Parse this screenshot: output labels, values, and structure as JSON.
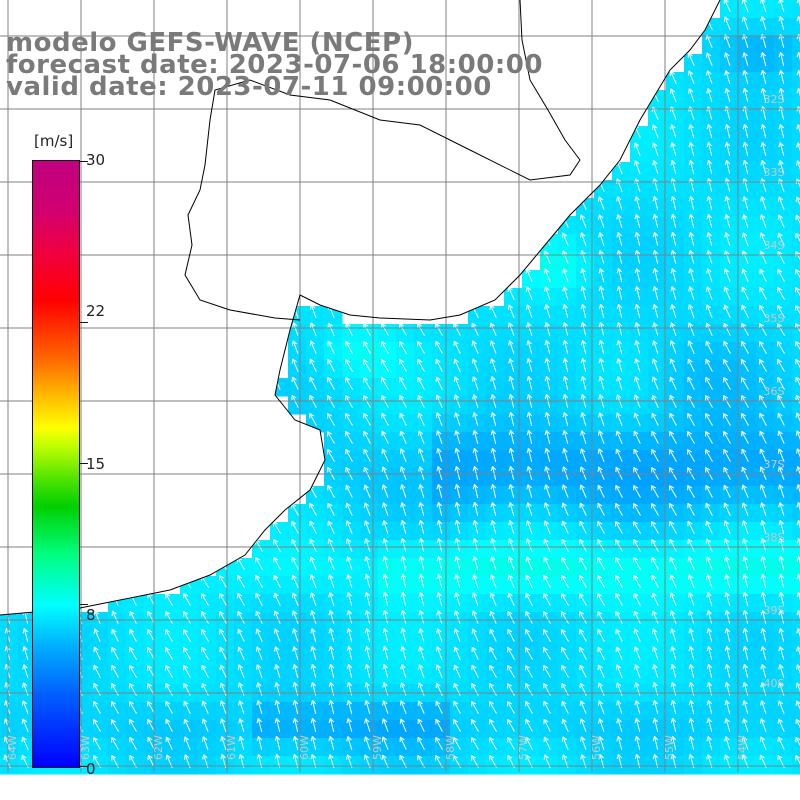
{
  "title": {
    "line1": "modelo GEFS-WAVE (NCEP)",
    "line2": "forecast date: 2023-07-06 18:00:00",
    "line3": "valid date: 2023-07-11 09:00:00"
  },
  "colorbar": {
    "unit": "[m/s]",
    "ticks": [
      "30",
      "22",
      "15",
      "8",
      "0"
    ],
    "tick_values": [
      30,
      22,
      15,
      8,
      0
    ],
    "range": [
      0,
      30
    ],
    "colors": [
      "#0000ff",
      "#00b0ff",
      "#00ffff",
      "#00ff80",
      "#00d000",
      "#ffff00",
      "#ff6000",
      "#ff0000",
      "#c00080"
    ]
  },
  "map": {
    "land_color": "#ffffff",
    "grid_color": "#808080",
    "coast_color": "#000000",
    "arrow_color": "#ffffff",
    "lat_labels": [
      "32S",
      "33S",
      "34S",
      "35S",
      "36S",
      "37S",
      "38S",
      "39S",
      "40S"
    ],
    "lon_labels": [
      "64W",
      "63W",
      "62W",
      "61W",
      "60W",
      "59W",
      "58W",
      "57W",
      "56W",
      "55W",
      "54W"
    ],
    "wind_direction": "from south-east"
  }
}
